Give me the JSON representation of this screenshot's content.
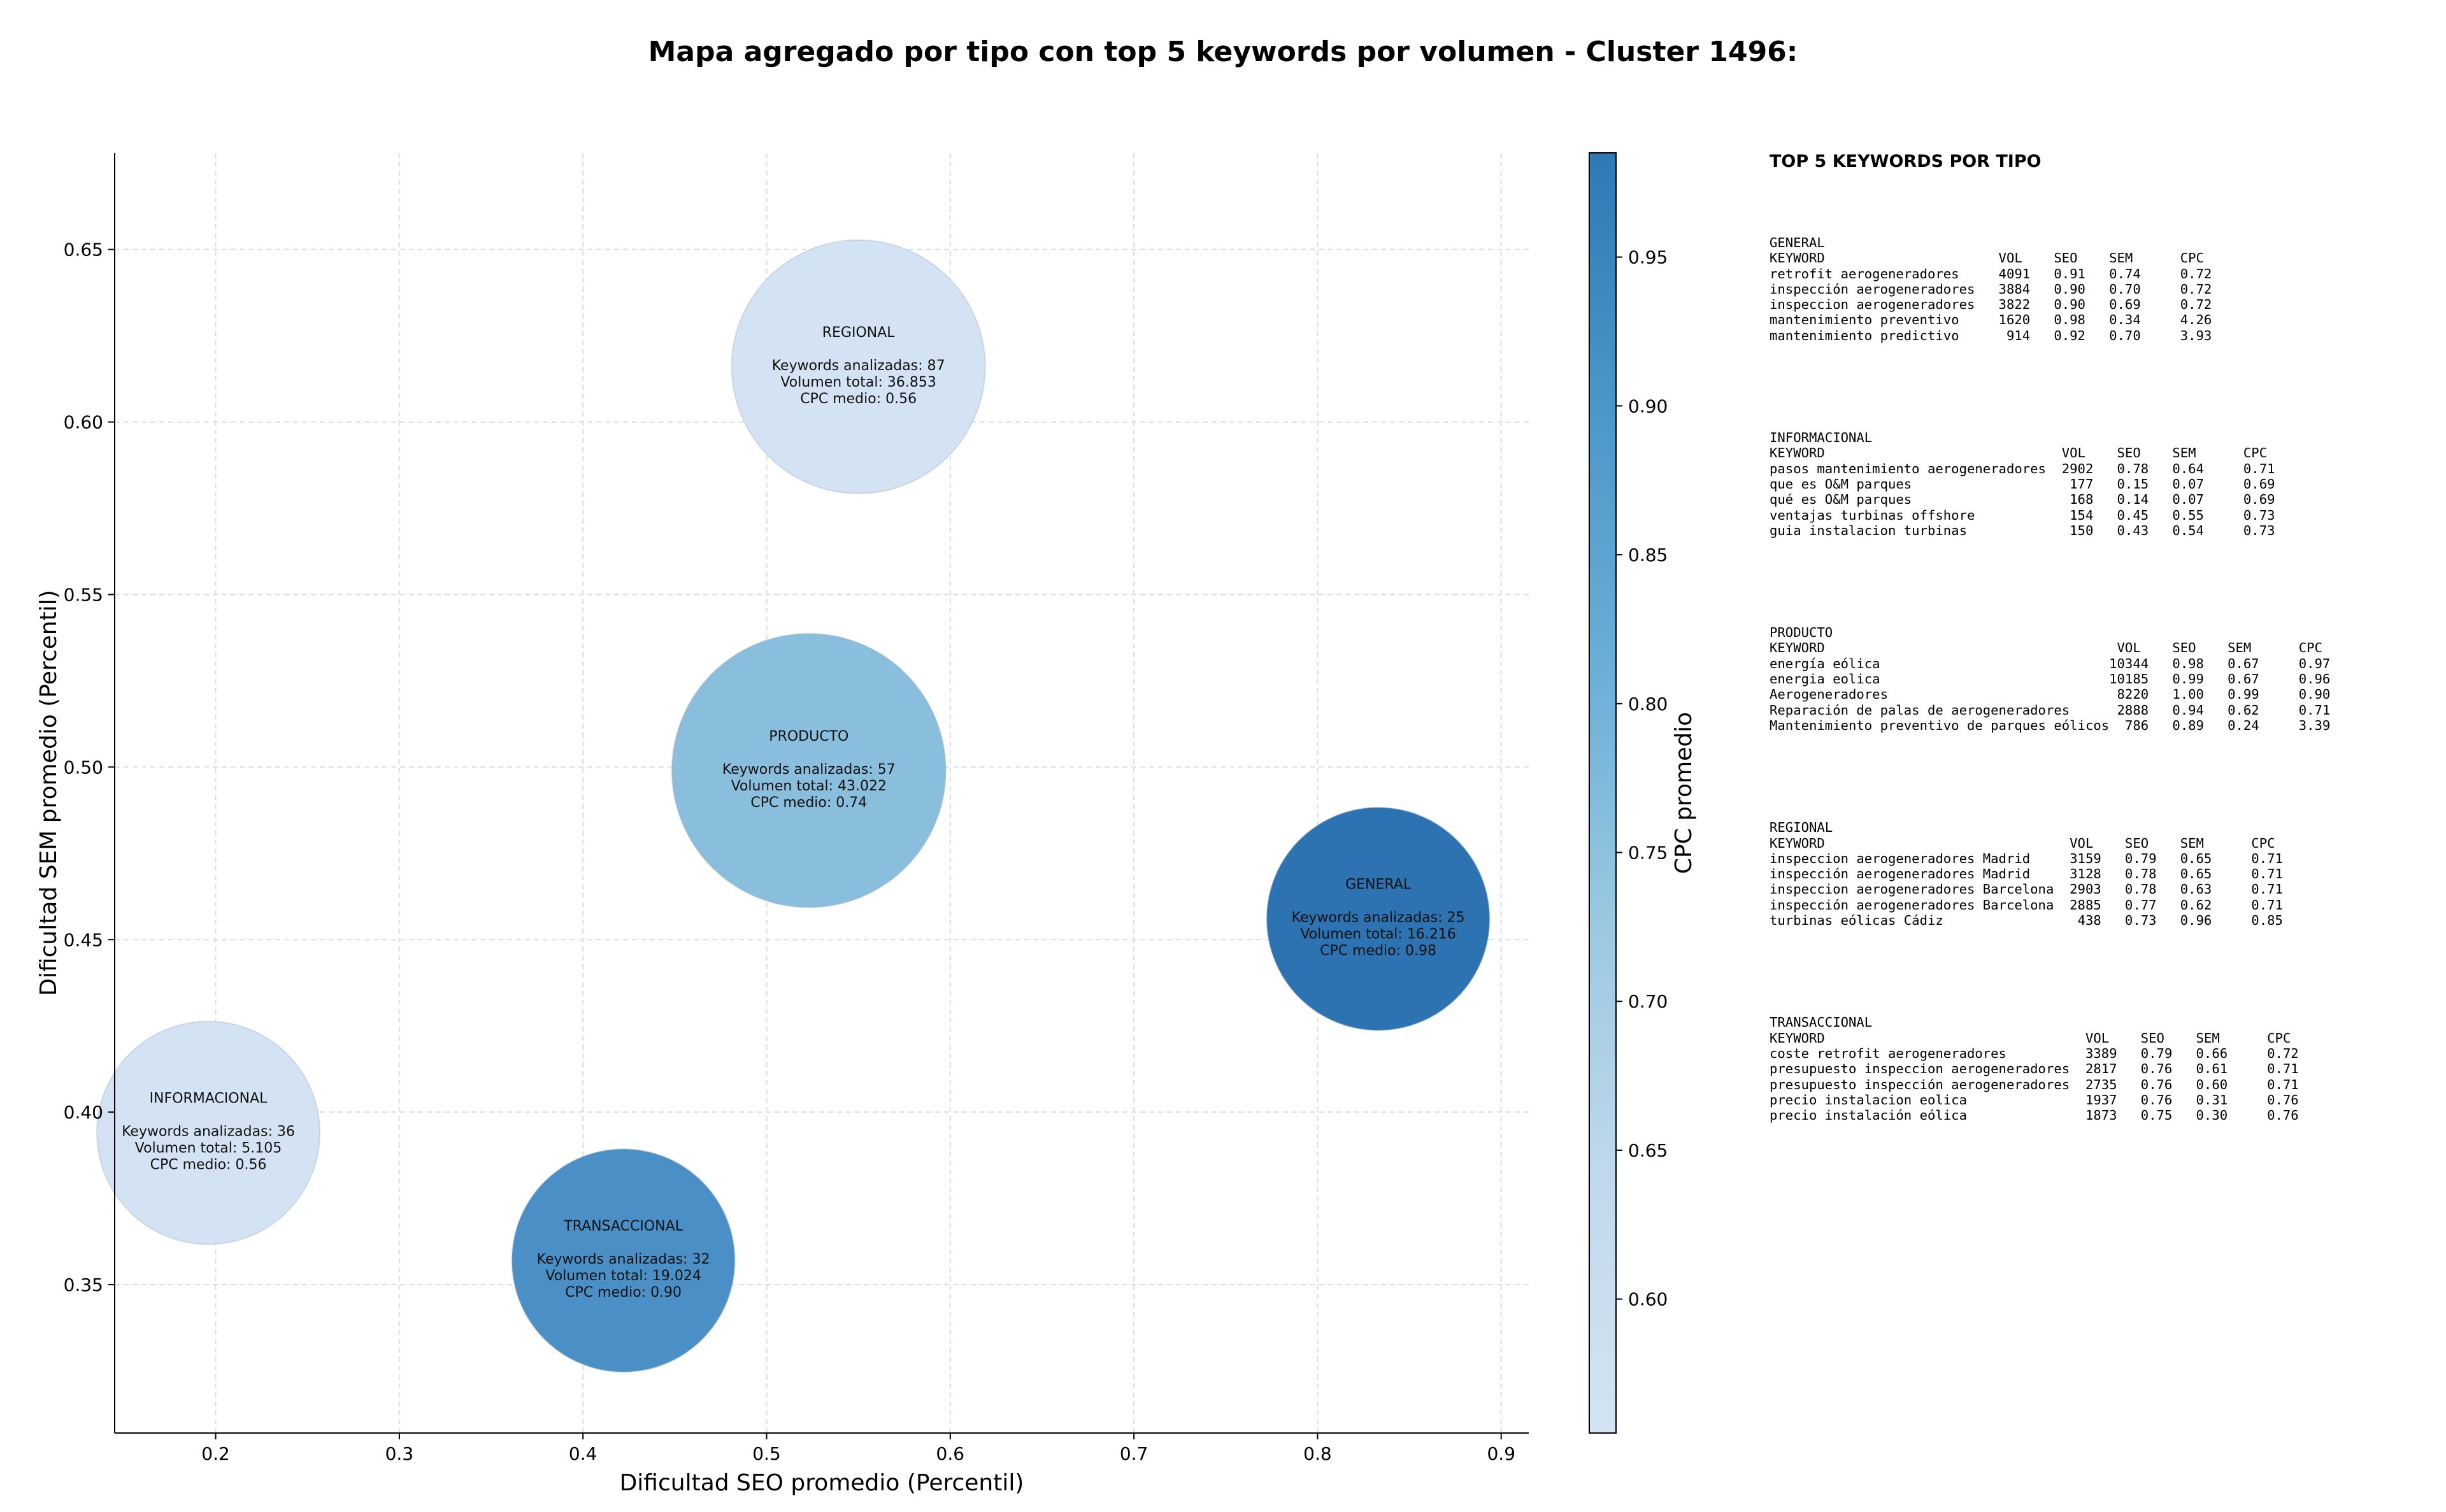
{
  "chart_data": {
    "type": "scatter",
    "title": "Mapa agregado por tipo con top 5 keywords por volumen - Cluster 1496:",
    "xlabel": "Dificultad SEO promedio (Percentil)",
    "ylabel": "Dificultad SEM promedio (Percentil)",
    "xlim": [
      0.145,
      0.915
    ],
    "ylim": [
      0.307,
      0.678
    ],
    "xticks": [
      "0.2",
      "0.3",
      "0.4",
      "0.5",
      "0.6",
      "0.7",
      "0.8",
      "0.9"
    ],
    "yticks": [
      "0.35",
      "0.40",
      "0.45",
      "0.50",
      "0.55",
      "0.60",
      "0.65"
    ],
    "grid": true,
    "colorbar": {
      "label": "CPC promedio",
      "range": [
        0.555,
        0.985
      ],
      "ticks": [
        "0.60",
        "0.65",
        "0.70",
        "0.75",
        "0.80",
        "0.85",
        "0.90",
        "0.95"
      ],
      "colors": [
        "#d3e3f3",
        "#c0d8ed",
        "#9ac8e1",
        "#6aaed6",
        "#4a97c9",
        "#2f79b5"
      ]
    },
    "bubbles": [
      {
        "name": "REGIONAL",
        "x": 0.55,
        "y": 0.616,
        "size": 36853,
        "cpc": 0.56,
        "l1": "Keywords analizadas: 87",
        "l2": "Volumen total: 36.853",
        "l3": "CPC medio: 0.56",
        "color": "#d3e3f3"
      },
      {
        "name": "PRODUCTO",
        "x": 0.523,
        "y": 0.499,
        "size": 43022,
        "cpc": 0.74,
        "l1": "Keywords analizadas: 57",
        "l2": "Volumen total: 43.022",
        "l3": "CPC medio: 0.74",
        "color": "#89bfdd"
      },
      {
        "name": "GENERAL",
        "x": 0.833,
        "y": 0.456,
        "size": 16216,
        "cpc": 0.98,
        "l1": "Keywords analizadas: 25",
        "l2": "Volumen total: 16.216",
        "l3": "CPC medio: 0.98",
        "color": "#2d72b1"
      },
      {
        "name": "INFORMACIONAL",
        "x": 0.196,
        "y": 0.394,
        "size": 5105,
        "cpc": 0.56,
        "l1": "Keywords analizadas: 36",
        "l2": "Volumen total: 5.105",
        "l3": "CPC medio: 0.56",
        "color": "#d3e3f3"
      },
      {
        "name": "TRANSACCIONAL",
        "x": 0.422,
        "y": 0.357,
        "size": 19024,
        "cpc": 0.9,
        "l1": "Keywords analizadas: 32",
        "l2": "Volumen total: 19.024",
        "l3": "CPC medio: 0.90",
        "color": "#4a90c6"
      }
    ]
  },
  "tables": {
    "heading": "TOP 5 KEYWORDS POR TIPO",
    "blocks": [
      {
        "type": "GENERAL",
        "lines": [
          "KEYWORD                      VOL    SEO    SEM      CPC",
          "retrofit aerogeneradores     4091   0.91   0.74     0.72",
          "inspección aerogeneradores   3884   0.90   0.70     0.72",
          "inspeccion aerogeneradores   3822   0.90   0.69     0.72",
          "mantenimiento preventivo     1620   0.98   0.34     4.26",
          "mantenimiento predictivo      914   0.92   0.70     3.93"
        ]
      },
      {
        "type": "INFORMACIONAL",
        "lines": [
          "KEYWORD                              VOL    SEO    SEM      CPC",
          "pasos mantenimiento aerogeneradores  2902   0.78   0.64     0.71",
          "que es O&M parques                    177   0.15   0.07     0.69",
          "qué es O&M parques                    168   0.14   0.07     0.69",
          "ventajas turbinas offshore            154   0.45   0.55     0.73",
          "guia instalacion turbinas             150   0.43   0.54     0.73"
        ]
      },
      {
        "type": "PRODUCTO",
        "lines": [
          "KEYWORD                                     VOL    SEO    SEM      CPC",
          "energía eólica                             10344   0.98   0.67     0.97",
          "energia eolica                             10185   0.99   0.67     0.96",
          "Aerogeneradores                             8220   1.00   0.99     0.90",
          "Reparación de palas de aerogeneradores      2888   0.94   0.62     0.71",
          "Mantenimiento preventivo de parques eólicos  786   0.89   0.24     3.39"
        ]
      },
      {
        "type": "REGIONAL",
        "lines": [
          "KEYWORD                               VOL    SEO    SEM      CPC",
          "inspeccion aerogeneradores Madrid     3159   0.79   0.65     0.71",
          "inspección aerogeneradores Madrid     3128   0.78   0.65     0.71",
          "inspeccion aerogeneradores Barcelona  2903   0.78   0.63     0.71",
          "inspección aerogeneradores Barcelona  2885   0.77   0.62     0.71",
          "turbinas eólicas Cádiz                 438   0.73   0.96     0.85"
        ]
      },
      {
        "type": "TRANSACCIONAL",
        "lines": [
          "KEYWORD                                 VOL    SEO    SEM      CPC",
          "coste retrofit aerogeneradores          3389   0.79   0.66     0.72",
          "presupuesto inspeccion aerogeneradores  2817   0.76   0.61     0.71",
          "presupuesto inspección aerogeneradores  2735   0.76   0.60     0.71",
          "precio instalacion eolica               1937   0.76   0.31     0.76",
          "precio instalación eólica               1873   0.75   0.30     0.76"
        ]
      }
    ]
  }
}
